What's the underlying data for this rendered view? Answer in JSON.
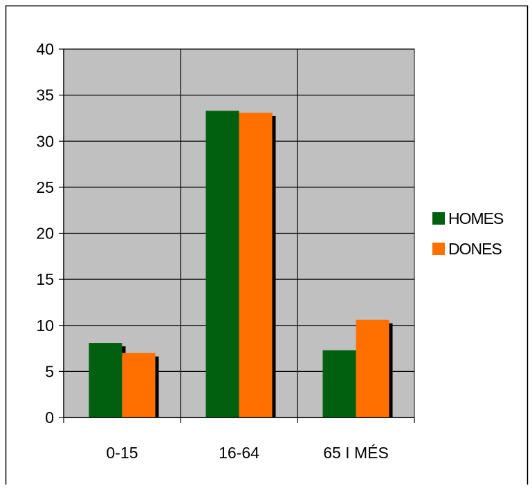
{
  "chart_data": {
    "type": "bar",
    "title": "",
    "xlabel": "",
    "ylabel": "",
    "categories": [
      "0-15",
      "16-64",
      "65 I MÉS"
    ],
    "series": [
      {
        "name": "HOMES",
        "values": [
          8.1,
          33.3,
          7.3
        ]
      },
      {
        "name": "DONES",
        "values": [
          7.0,
          33.1,
          10.6
        ]
      }
    ],
    "ylim": [
      0,
      40
    ],
    "yticks": [
      0,
      5,
      10,
      15,
      20,
      25,
      30,
      35,
      40
    ],
    "grid": true,
    "legend": "right",
    "colors": {
      "plot_background": "#c0c0c0",
      "HOMES": "#006010",
      "DONES": "#ff7000",
      "shadow": "#000000"
    }
  }
}
